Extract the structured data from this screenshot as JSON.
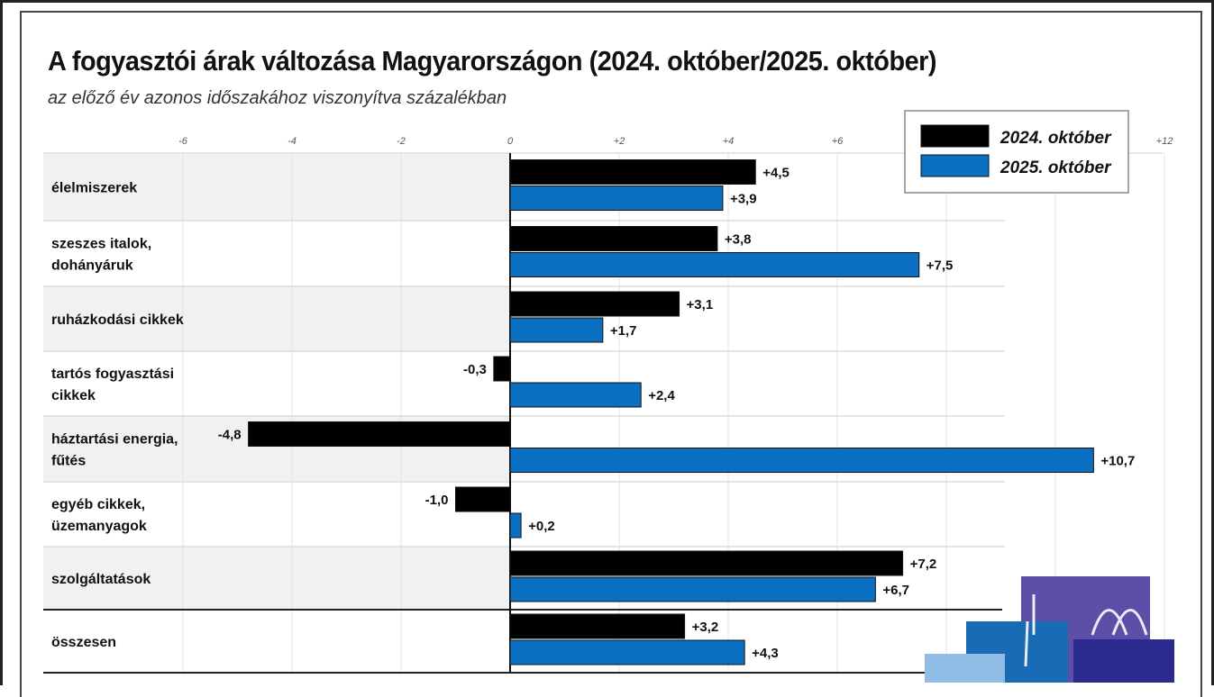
{
  "chart_data": {
    "type": "bar",
    "orientation": "horizontal",
    "title": "A fogyasztói árak változása Magyarországon (2024. október/2025. október)",
    "subtitle": "az előző év azonos időszakához viszonyítva százalékban",
    "categories": [
      "élelmiszerek",
      "szeszes italok, dohányáruk",
      "ruházkodási cikkek",
      "tartós fogyasztási cikkek",
      "háztartási energia, fűtés",
      "egyéb cikkek, üzemanyagok",
      "szolgáltatások",
      "összesen"
    ],
    "category_lines": [
      [
        "élelmiszerek"
      ],
      [
        "szeszes italok,",
        "dohányáruk"
      ],
      [
        "ruházkodási cikkek"
      ],
      [
        "tartós fogyasztási",
        "cikkek"
      ],
      [
        "háztartási energia,",
        "fűtés"
      ],
      [
        "egyéb cikkek,",
        "üzemanyagok"
      ],
      [
        "szolgáltatások"
      ],
      [
        "összesen"
      ]
    ],
    "series": [
      {
        "name": "2024. október",
        "color": "#000000",
        "values": [
          4.5,
          3.8,
          3.1,
          -0.3,
          -4.8,
          -1.0,
          7.2,
          3.2
        ],
        "labels": [
          "+4,5",
          "+3,8",
          "+3,1",
          "-0,3",
          "-4,8",
          "-1,0",
          "+7,2",
          "+3,2"
        ]
      },
      {
        "name": "2025. október",
        "color": "#0b6fc1",
        "values": [
          3.9,
          7.5,
          1.7,
          2.4,
          10.7,
          0.2,
          6.7,
          4.3
        ],
        "labels": [
          "+3,9",
          "+7,5",
          "+1,7",
          "+2,4",
          "+10,7",
          "+0,2",
          "+6,7",
          "+4,3"
        ]
      }
    ],
    "xlim": [
      -6,
      12
    ],
    "grid_step": 2,
    "tick_labels": [
      {
        "value": -6,
        "label": "-6"
      },
      {
        "value": -4,
        "label": "-4"
      },
      {
        "value": -2,
        "label": "-2"
      },
      {
        "value": 0,
        "label": "0"
      },
      {
        "value": 2,
        "label": "+2"
      },
      {
        "value": 4,
        "label": "+4"
      },
      {
        "value": 6,
        "label": "+6"
      },
      {
        "value": 12,
        "label": "+12"
      }
    ],
    "grid": true,
    "legend_position": "top-right",
    "decoration": "shopping-bags"
  }
}
